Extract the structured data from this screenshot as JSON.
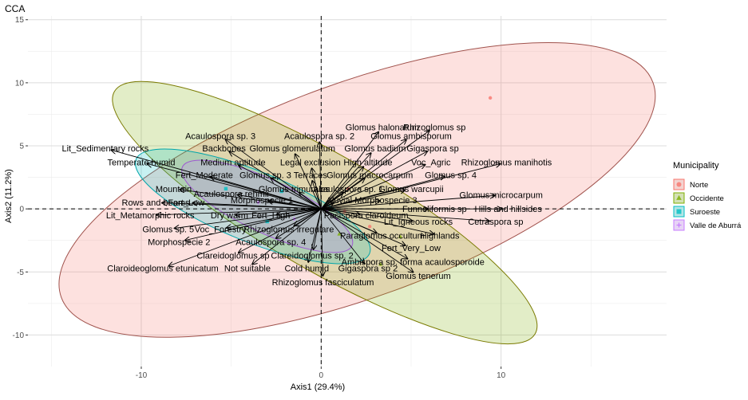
{
  "chart_data": {
    "type": "scatter",
    "title": "CCA",
    "xlabel": "Axis1 (29.4%)",
    "ylabel": "Axis2 (11.2%)",
    "xlim": [
      -16.3,
      19.2
    ],
    "ylim": [
      -12.5,
      15.3
    ],
    "xticks": [
      -10,
      0,
      10
    ],
    "yticks": [
      -10,
      -5,
      0,
      5,
      10,
      15
    ],
    "grid": true,
    "legend": {
      "title": "Municipality",
      "placement": "right",
      "entries": [
        {
          "name": "Norte",
          "color": "#F8766D",
          "shape": "circle"
        },
        {
          "name": "Occidente",
          "color": "#7CAE00",
          "shape": "triangle"
        },
        {
          "name": "Suroeste",
          "color": "#00BFC4",
          "shape": "square"
        },
        {
          "name": "Valle de Aburrá",
          "color": "#C77CFF",
          "shape": "plus"
        }
      ]
    },
    "ellipses": [
      {
        "group": "Norte",
        "cx": 2.0,
        "cy": 1.5,
        "rx": 17.5,
        "ry": 8.5,
        "angle": 20,
        "fill": "#F8766D",
        "stroke": "#a0524c"
      },
      {
        "group": "Occidente",
        "cx": 0.2,
        "cy": -0.3,
        "rx": 13.5,
        "ry": 4.6,
        "angle": -30,
        "fill": "#7CAE00",
        "stroke": "#7a7a00"
      },
      {
        "group": "Suroeste",
        "cx": -3.8,
        "cy": 0.2,
        "rx": 7.0,
        "ry": 2.8,
        "angle": -22,
        "fill": "#00BFC4",
        "stroke": "#00A5AA"
      },
      {
        "group": "Valle de Aburrá",
        "cx": -3.0,
        "cy": 0.2,
        "rx": 5.2,
        "ry": 2.1,
        "angle": -25,
        "fill": "#C77CFF",
        "stroke": "#9E59D0"
      }
    ],
    "points": [
      {
        "group": "Norte",
        "x": 9.4,
        "y": 8.8
      },
      {
        "group": "Norte",
        "x": 1.5,
        "y": 1.6
      },
      {
        "group": "Norte",
        "x": 2.7,
        "y": -1.4
      },
      {
        "group": "Norte",
        "x": 1.3,
        "y": -0.2
      },
      {
        "group": "Occidente",
        "x": 3.3,
        "y": -4.4
      },
      {
        "group": "Occidente",
        "x": 4.4,
        "y": -2.2
      },
      {
        "group": "Occidente",
        "x": 1.0,
        "y": -2.0
      },
      {
        "group": "Suroeste",
        "x": -5.3,
        "y": 1.6
      },
      {
        "group": "Suroeste",
        "x": -3.0,
        "y": -1.0
      },
      {
        "group": "Suroeste",
        "x": -2.2,
        "y": 1.4
      },
      {
        "group": "Valle de Aburrá",
        "x": -3.5,
        "y": 0.5
      },
      {
        "group": "Valle de Aburrá",
        "x": -1.5,
        "y": -0.8
      }
    ],
    "vectors": [
      {
        "label": "Glomus halonatum",
        "x": 3.4,
        "y": 6.5
      },
      {
        "label": "Rhizoglomus sp",
        "x": 6.3,
        "y": 6.5
      },
      {
        "label": "Acaulospora sp. 3",
        "x": -5.6,
        "y": 5.8
      },
      {
        "label": "Acaulospora sp. 2",
        "x": -0.1,
        "y": 5.8
      },
      {
        "label": "Glomus ambisporum",
        "x": 5.0,
        "y": 5.8
      },
      {
        "label": "Lit_Sedimentary rocks",
        "x": -12.0,
        "y": 4.8
      },
      {
        "label": "Backbones",
        "x": -5.4,
        "y": 4.8
      },
      {
        "label": "Glomus glomerulatum",
        "x": -1.6,
        "y": 4.8
      },
      {
        "label": "Glomus badium",
        "x": 3.0,
        "y": 4.8
      },
      {
        "label": "Gigaspora sp",
        "x": 6.2,
        "y": 4.8
      },
      {
        "label": "Temperate humid",
        "x": -10.0,
        "y": 3.7
      },
      {
        "label": "Medium aptitude",
        "x": -4.9,
        "y": 3.7
      },
      {
        "label": "Legal exclusion",
        "x": -0.6,
        "y": 3.7
      },
      {
        "label": "High altitude",
        "x": 2.6,
        "y": 3.7
      },
      {
        "label": "Voc_Agric",
        "x": 6.1,
        "y": 3.7
      },
      {
        "label": "Rhizoglomus manihotis",
        "x": 10.3,
        "y": 3.7
      },
      {
        "label": "Fert_Moderate",
        "x": -6.5,
        "y": 2.7
      },
      {
        "label": "Glomus sp. 3",
        "x": -3.1,
        "y": 2.7
      },
      {
        "label": "Terraces",
        "x": -0.6,
        "y": 2.7
      },
      {
        "label": "Glomus macrocarpum",
        "x": 2.7,
        "y": 2.7
      },
      {
        "label": "Glomus sp. 4",
        "x": 7.2,
        "y": 2.7
      },
      {
        "label": "Mountain",
        "x": -8.2,
        "y": 1.6
      },
      {
        "label": "Glomus trimurales",
        "x": -1.5,
        "y": 1.6
      },
      {
        "label": "Acaulospora sp. 1",
        "x": 1.5,
        "y": 1.6
      },
      {
        "label": "Glomus warcupii",
        "x": 5.0,
        "y": 1.6
      },
      {
        "label": "Acaulospora rehmii",
        "x": -5.0,
        "y": 1.2
      },
      {
        "label": "Glomus microcarpum",
        "x": 10.0,
        "y": 1.1
      },
      {
        "label": "Morphospecie 1",
        "x": -3.3,
        "y": 0.7
      },
      {
        "label": "Aluvial",
        "x": 1.0,
        "y": 0.7
      },
      {
        "label": "Morphospecie 3",
        "x": 3.6,
        "y": 0.7
      },
      {
        "label": "Rows and beams",
        "x": -9.2,
        "y": 0.5
      },
      {
        "label": "Fert_Low",
        "x": -7.5,
        "y": 0.5
      },
      {
        "label": "Funneliformis sp",
        "x": 6.3,
        "y": 0.0
      },
      {
        "label": "Hills and hillsides",
        "x": 10.4,
        "y": 0.0
      },
      {
        "label": "Lit_Metamorphic rocks",
        "x": -9.5,
        "y": -0.5
      },
      {
        "label": "Dry warm",
        "x": -5.1,
        "y": -0.5
      },
      {
        "label": "Fert_High",
        "x": -2.8,
        "y": -0.5
      },
      {
        "label": "Pacispora claroideum",
        "x": 2.5,
        "y": -0.5
      },
      {
        "label": "Lit_Igneous rocks",
        "x": 5.4,
        "y": -1.0
      },
      {
        "label": "Cetraspora sp",
        "x": 9.7,
        "y": -1.0
      },
      {
        "label": "Glomus sp. 5",
        "x": -8.5,
        "y": -1.6
      },
      {
        "label": "Voc_Forestry",
        "x": -5.6,
        "y": -1.6
      },
      {
        "label": "Rhizoglomus irregulare",
        "x": -1.8,
        "y": -1.6
      },
      {
        "label": "Paraglomus occultum",
        "x": 3.4,
        "y": -2.1
      },
      {
        "label": "Highlands",
        "x": 6.6,
        "y": -2.1
      },
      {
        "label": "Morphospecie 2",
        "x": -7.9,
        "y": -2.6
      },
      {
        "label": "Acaulospora sp. 4",
        "x": -2.8,
        "y": -2.6
      },
      {
        "label": "Fert_Very_Low",
        "x": 5.0,
        "y": -3.1
      },
      {
        "label": "Clareidoglomus sp",
        "x": -4.9,
        "y": -3.7
      },
      {
        "label": "Clareidoglomus sp. 2",
        "x": -0.5,
        "y": -3.7
      },
      {
        "label": "Ambispora sp. forma acaulosporoide",
        "x": 5.1,
        "y": -4.2
      },
      {
        "label": "Claroideoglomus etunicatum",
        "x": -8.8,
        "y": -4.7
      },
      {
        "label": "Not suitable",
        "x": -4.1,
        "y": -4.7
      },
      {
        "label": "Cold humid",
        "x": -0.8,
        "y": -4.7
      },
      {
        "label": "Gigaspora sp 2",
        "x": 2.6,
        "y": -4.7
      },
      {
        "label": "Glomus tenerum",
        "x": 5.4,
        "y": -5.3
      },
      {
        "label": "Rhizoglomus fasciculatum",
        "x": 0.1,
        "y": -5.8
      }
    ]
  }
}
